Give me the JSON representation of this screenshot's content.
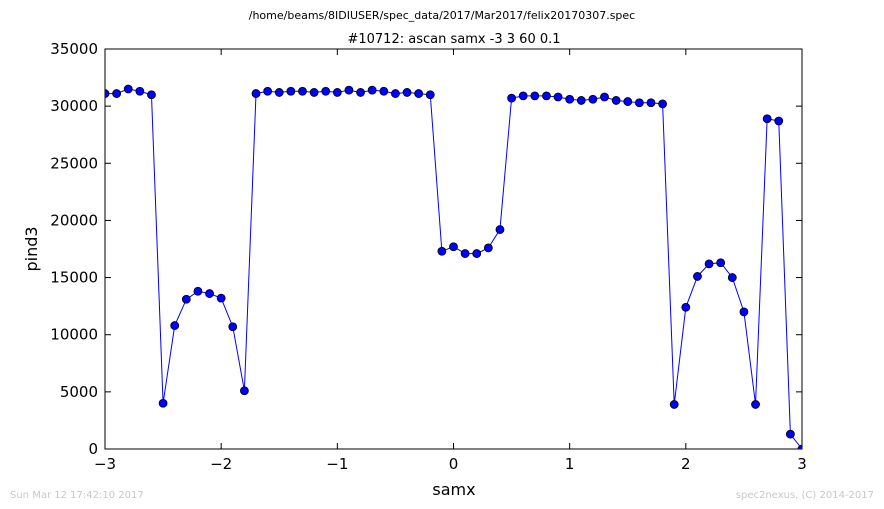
{
  "chart_data": {
    "type": "line",
    "suptitle": "/home/beams/8IDIUSER/spec_data/2017/Mar2017/felix20170307.spec",
    "title": "#10712: ascan  samx -3 3  60 0.1",
    "xlabel": "samx",
    "ylabel": "pind3",
    "xlim": [
      -3,
      3
    ],
    "ylim": [
      0,
      35000
    ],
    "xticks": [
      -3,
      -2,
      -1,
      0,
      1,
      2,
      3
    ],
    "xtick_labels": [
      "−3",
      "−2",
      "−1",
      "0",
      "1",
      "2",
      "3"
    ],
    "yticks": [
      0,
      5000,
      10000,
      15000,
      20000,
      25000,
      30000,
      35000
    ],
    "ytick_labels": [
      "0",
      "5000",
      "10000",
      "15000",
      "20000",
      "25000",
      "30000",
      "35000"
    ],
    "grid": false,
    "colors": {
      "line": "#0000ff",
      "marker": "#0000ff"
    },
    "series": [
      {
        "x": [
          -3.0,
          -2.9,
          -2.8,
          -2.7,
          -2.6,
          -2.5,
          -2.4,
          -2.3,
          -2.2,
          -2.1,
          -2.0,
          -1.9,
          -1.8,
          -1.7,
          -1.6,
          -1.5,
          -1.4,
          -1.3,
          -1.2,
          -1.1,
          -1.0,
          -0.9,
          -0.8,
          -0.7,
          -0.6,
          -0.5,
          -0.4,
          -0.3,
          -0.2,
          -0.1,
          0.0,
          0.1,
          0.2,
          0.3,
          0.4,
          0.5,
          0.6,
          0.7,
          0.8,
          0.9,
          1.0,
          1.1,
          1.2,
          1.3,
          1.4,
          1.5,
          1.6,
          1.7,
          1.8,
          1.9,
          2.0,
          2.1,
          2.2,
          2.3,
          2.4,
          2.5,
          2.6,
          2.7,
          2.8,
          2.9,
          3.0
        ],
        "y": [
          31100,
          31100,
          31500,
          31300,
          31000,
          4000,
          10800,
          13100,
          13800,
          13600,
          13200,
          10700,
          5100,
          31100,
          31300,
          31200,
          31300,
          31300,
          31200,
          31300,
          31200,
          31400,
          31200,
          31400,
          31300,
          31100,
          31200,
          31100,
          31000,
          17300,
          17700,
          17100,
          17100,
          17600,
          19200,
          30700,
          30900,
          30900,
          30900,
          30800,
          30600,
          30500,
          30600,
          30800,
          30500,
          30400,
          30300,
          30300,
          30200,
          3900,
          12400,
          15100,
          16200,
          16300,
          15000,
          12000,
          3900,
          28900,
          28700,
          1300,
          0
        ]
      }
    ]
  },
  "footer": {
    "timestamp": "Sun Mar 12 17:42:10 2017",
    "credit": "spec2nexus, (C) 2014-2017"
  }
}
